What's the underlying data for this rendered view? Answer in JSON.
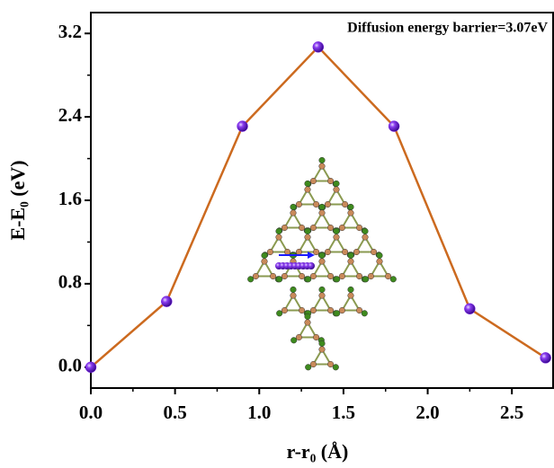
{
  "chart_data": {
    "type": "line",
    "annotation": "Diffusion energy barrier=3.07eV",
    "xlabel": "r-r₀ (Å)",
    "ylabel": "E-E₀ (eV)",
    "x": [
      0,
      0.45,
      0.9,
      1.35,
      1.8,
      2.25,
      2.7
    ],
    "series": [
      {
        "color": "#cc6a1f",
        "values": [
          0,
          0.63,
          2.31,
          3.07,
          2.31,
          0.56,
          0.09
        ]
      }
    ],
    "marker_color": "#7a22e8",
    "xlim": [
      0,
      2.75
    ],
    "xticks": [
      {
        "value": 0,
        "label": "0.0"
      },
      0.5,
      {
        "value": 1,
        "label": "1.0"
      },
      1.5,
      {
        "value": 2,
        "label": "2.0"
      },
      2.5
    ],
    "ylim": [
      -0.2,
      3.4
    ],
    "yticks": [
      {
        "value": 0,
        "label": "0.0"
      },
      0.8,
      1.6,
      2.4,
      3.2
    ]
  }
}
